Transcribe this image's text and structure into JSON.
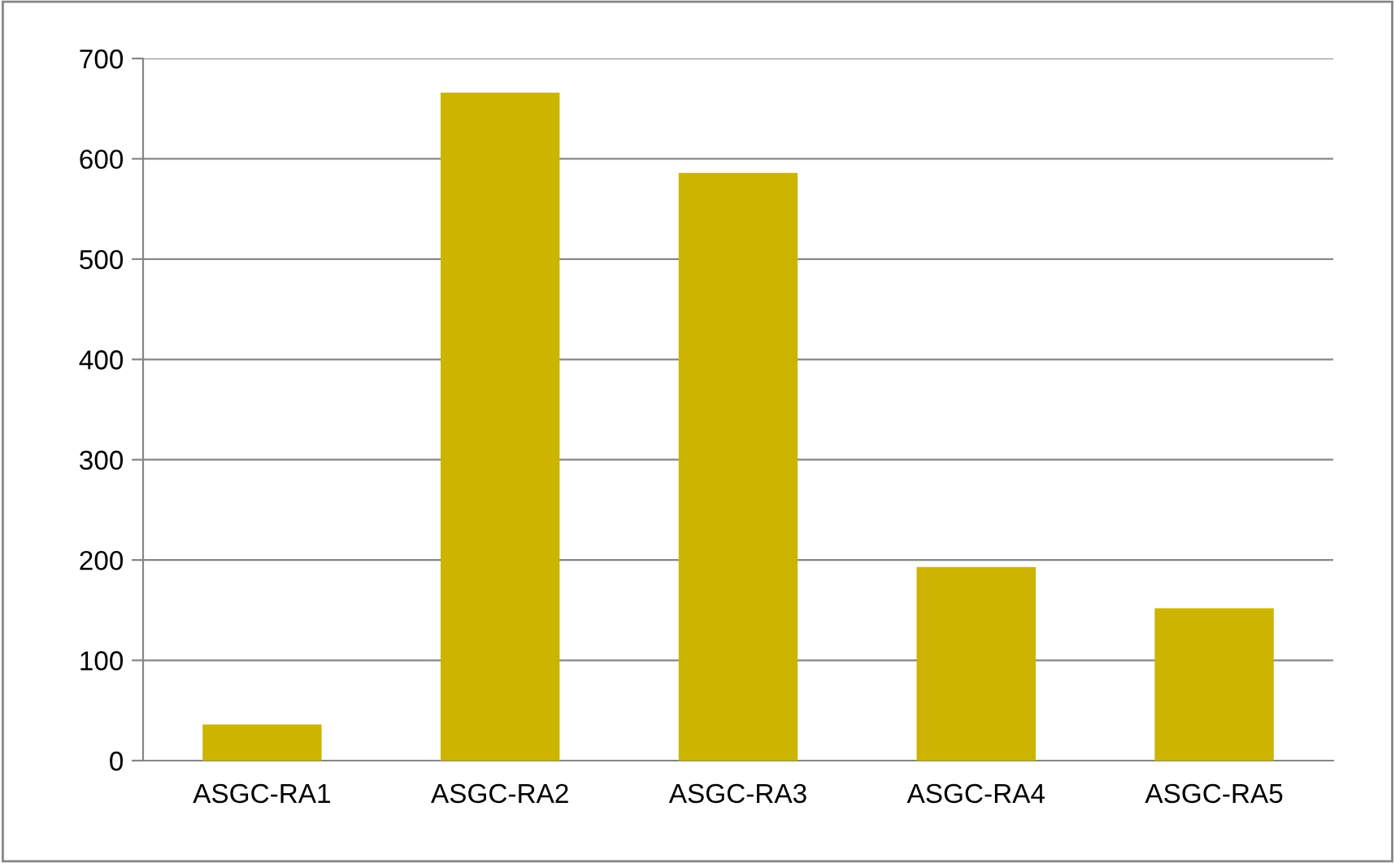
{
  "chart_data": {
    "type": "bar",
    "categories": [
      "ASGC-RA1",
      "ASGC-RA2",
      "ASGC-RA3",
      "ASGC-RA4",
      "ASGC-RA5"
    ],
    "values": [
      36,
      666,
      586,
      193,
      152
    ],
    "color": "#ccb400",
    "ylim": [
      0,
      700
    ],
    "yticks": [
      0,
      100,
      200,
      300,
      400,
      500,
      600,
      700
    ],
    "grid": "y",
    "legend": false
  }
}
